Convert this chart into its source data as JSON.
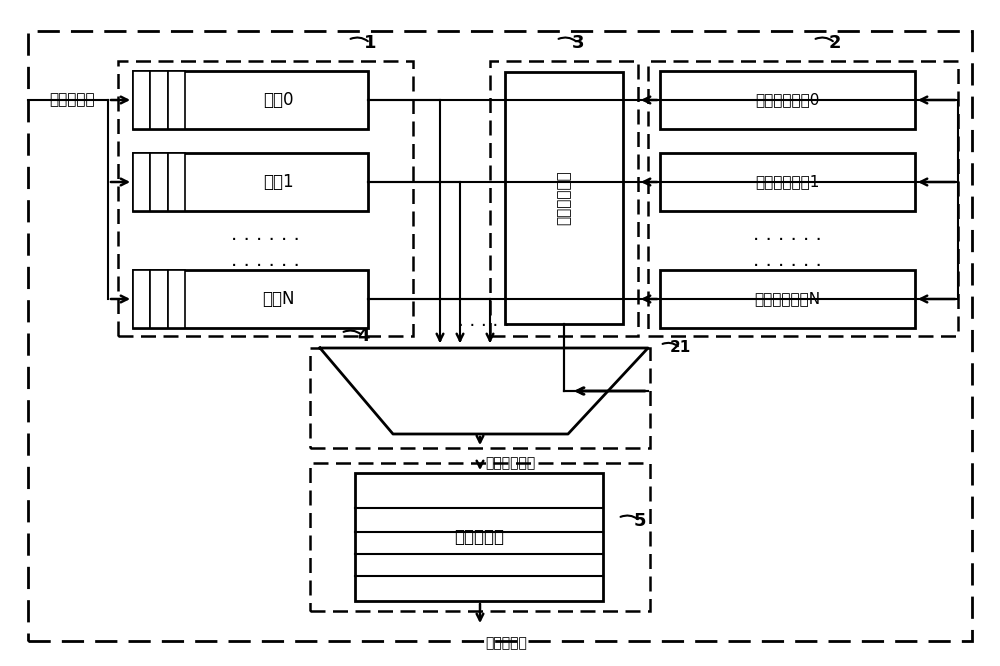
{
  "bg_color": "#ffffff",
  "text_color": "#000000",
  "font_size": 12,
  "label_suovisit": "锁访问请求",
  "label_suovisit_resp": "锁访问应响",
  "label_selected": "被选择的请求",
  "queue_labels": [
    "队共0",
    "队共1",
    "队列N"
  ],
  "weight_labels": [
    "权値计数逻辑0",
    "权値计数逻辑1",
    "权値计数逻辑N"
  ],
  "min_label": "最小权値判断",
  "lock_label": "锁存储空间"
}
